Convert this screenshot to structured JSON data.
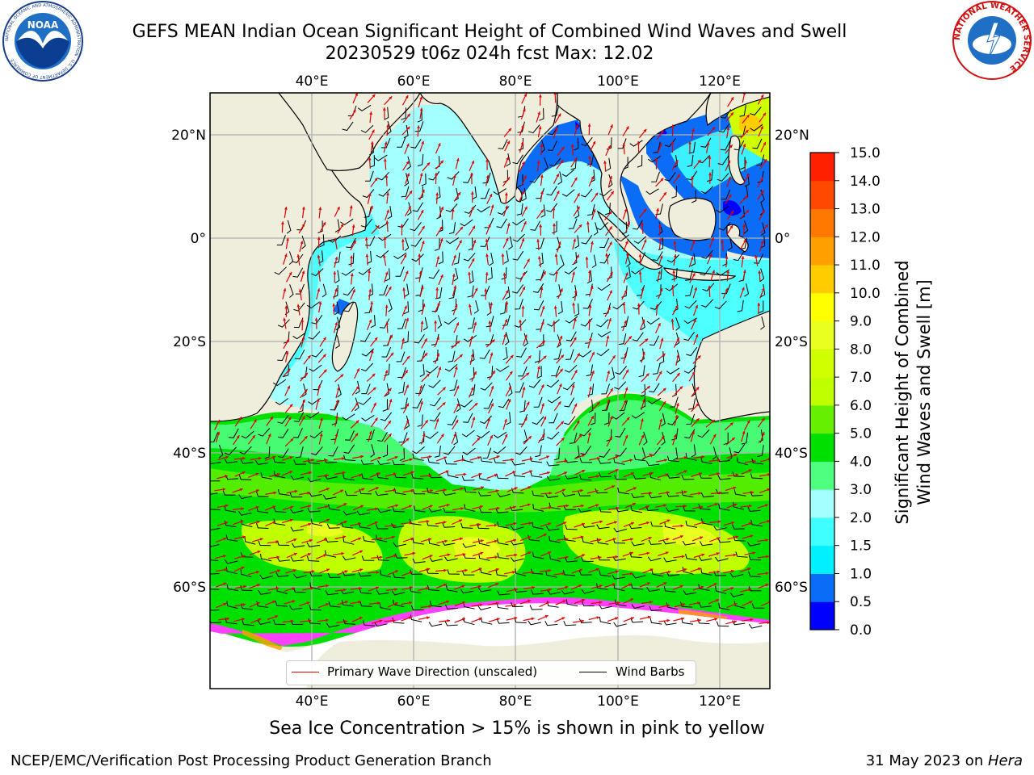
{
  "title_line1": "GEFS MEAN Indian Ocean Significant Height of Combined Wind Waves and Swell",
  "title_line2": "20230529 t06z 024h fcst   Max: 12.02",
  "logos": {
    "noaa_text": "NOAA",
    "noaa_ring_text": "NATIONAL OCEANIC AND ATMOSPHERIC ADMINISTRATION · U.S. DEPARTMENT OF COMMERCE",
    "nws_ring_text": "NATIONAL WEATHER SERVICE"
  },
  "map": {
    "lon_labels": [
      "40°E",
      "60°E",
      "80°E",
      "100°E",
      "120°E"
    ],
    "lat_labels": [
      "20°N",
      "0°",
      "20°S",
      "40°S",
      "60°S"
    ],
    "lon_range": [
      20,
      130
    ],
    "lat_range": [
      -70,
      27
    ],
    "gridlines": true,
    "colors": {
      "land": "#efeedd",
      "ice_shelf": "#ffffff",
      "wave_arrows": "#e00000",
      "wind_barbs": "#000000"
    }
  },
  "colorbar": {
    "label_line1": "Significant Height of Combined",
    "label_line2": "Wind Waves and Swell [m]",
    "ticks": [
      "0.0",
      "0.5",
      "1.0",
      "1.5",
      "2.0",
      "3.0",
      "4.0",
      "5.0",
      "6.0",
      "7.0",
      "8.0",
      "9.0",
      "10.0",
      "11.0",
      "12.0",
      "13.0",
      "14.0",
      "15.0"
    ],
    "bins": [
      {
        "from": "0.0",
        "to": "0.5",
        "color": "#0000ff"
      },
      {
        "from": "0.5",
        "to": "1.0",
        "color": "#0a6cf7"
      },
      {
        "from": "1.0",
        "to": "1.5",
        "color": "#00f0ff"
      },
      {
        "from": "1.5",
        "to": "2.0",
        "color": "#40ffff"
      },
      {
        "from": "2.0",
        "to": "3.0",
        "color": "#a4ffff"
      },
      {
        "from": "3.0",
        "to": "4.0",
        "color": "#4fff80"
      },
      {
        "from": "4.0",
        "to": "5.0",
        "color": "#00e000"
      },
      {
        "from": "5.0",
        "to": "6.0",
        "color": "#66f000"
      },
      {
        "from": "6.0",
        "to": "7.0",
        "color": "#c0ff00"
      },
      {
        "from": "7.0",
        "to": "8.0",
        "color": "#d0ff00"
      },
      {
        "from": "8.0",
        "to": "9.0",
        "color": "#e8ff20"
      },
      {
        "from": "9.0",
        "to": "10.0",
        "color": "#ffff00"
      },
      {
        "from": "10.0",
        "to": "11.0",
        "color": "#ffcc00"
      },
      {
        "from": "11.0",
        "to": "12.0",
        "color": "#ffa000"
      },
      {
        "from": "12.0",
        "to": "13.0",
        "color": "#ff7800"
      },
      {
        "from": "13.0",
        "to": "14.0",
        "color": "#ff4800"
      },
      {
        "from": "14.0",
        "to": "15.0",
        "color": "#ff2000"
      }
    ]
  },
  "legend": {
    "primary_label": "Primary Wave Direction (unscaled)",
    "wind_label": "Wind Barbs"
  },
  "footnote": "Sea Ice Concentration > 15% is shown in pink to yellow",
  "footer_left": "NCEP/EMC/Verification Post Processing Product Generation Branch",
  "footer_right_date": "31 May 2023 on ",
  "footer_right_host": "Hera"
}
